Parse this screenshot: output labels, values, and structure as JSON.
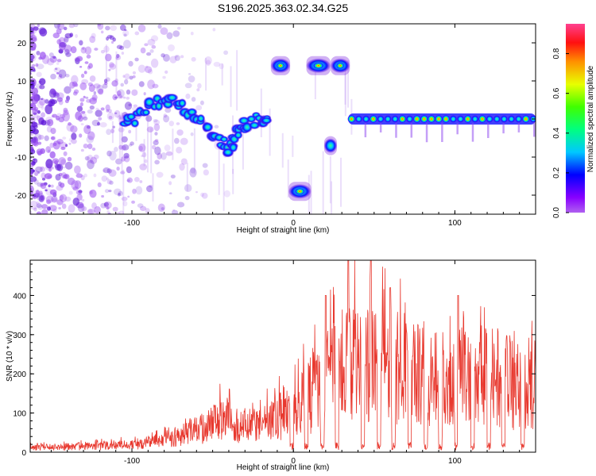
{
  "title": "S196.2025.363.02.34.G25",
  "chart_data": [
    {
      "type": "heatmap",
      "name": "spectrogram",
      "xlabel": "Height of straight line (km)",
      "ylabel": "Frequency (Hz)",
      "xlim": [
        -163,
        150
      ],
      "ylim": [
        -25,
        25
      ],
      "xticks": [
        -100,
        0,
        100
      ],
      "yticks": [
        -20,
        -10,
        0,
        10,
        20
      ],
      "colorbar": {
        "label": "Normalized spectral amplitude",
        "range": [
          0,
          0.95
        ],
        "ticks": [
          0.0,
          0.2,
          0.4,
          0.6,
          0.8
        ]
      },
      "features": [
        {
          "name": "noise-band",
          "x_from": -163,
          "x_to": -40,
          "f_from": -25,
          "f_to": 25
        },
        {
          "name": "descending-trace",
          "points": [
            [
              -105,
              -2
            ],
            [
              -95,
              1
            ],
            [
              -85,
              4
            ],
            [
              -75,
              5
            ],
            [
              -65,
              2
            ],
            [
              -55,
              -2
            ],
            [
              -45,
              -6
            ],
            [
              -40,
              -8
            ],
            [
              -35,
              -4
            ],
            [
              -30,
              -1
            ],
            [
              -20,
              0
            ],
            [
              -15,
              1
            ]
          ]
        },
        {
          "name": "burst-high-1",
          "x_from": -13,
          "x_to": -3,
          "freq": 14
        },
        {
          "name": "burst-low",
          "x_from": -2,
          "x_to": 10,
          "freq": -19
        },
        {
          "name": "burst-high-2",
          "x_from": 9,
          "x_to": 22,
          "freq": 14
        },
        {
          "name": "burst-mid",
          "x_from": 20,
          "x_to": 26,
          "freq": -7
        },
        {
          "name": "burst-high-3",
          "x_from": 24,
          "x_to": 34,
          "freq": 14
        },
        {
          "name": "steady-line",
          "x_from": 34,
          "x_to": 150,
          "freq": 0
        }
      ]
    },
    {
      "type": "line",
      "name": "snr",
      "xlabel": "Height of straight line (km)",
      "ylabel": "SNR (10 * v/v)",
      "xlim": [
        -163,
        150
      ],
      "ylim": [
        0,
        490
      ],
      "xticks": [
        -100,
        0,
        100
      ],
      "yticks": [
        0,
        100,
        200,
        300,
        400
      ],
      "color": "#e8392f",
      "envelope": [
        {
          "x": -163,
          "y": 15
        },
        {
          "x": -120,
          "y": 20
        },
        {
          "x": -100,
          "y": 25
        },
        {
          "x": -80,
          "y": 40
        },
        {
          "x": -60,
          "y": 70
        },
        {
          "x": -45,
          "y": 110
        },
        {
          "x": -35,
          "y": 90
        },
        {
          "x": -25,
          "y": 85
        },
        {
          "x": -15,
          "y": 100
        },
        {
          "x": -5,
          "y": 130
        },
        {
          "x": 5,
          "y": 160
        },
        {
          "x": 15,
          "y": 210
        },
        {
          "x": 25,
          "y": 260
        },
        {
          "x": 35,
          "y": 300
        },
        {
          "x": 45,
          "y": 310
        },
        {
          "x": 55,
          "y": 290
        },
        {
          "x": 65,
          "y": 280
        },
        {
          "x": 75,
          "y": 270
        },
        {
          "x": 85,
          "y": 230
        },
        {
          "x": 95,
          "y": 200
        },
        {
          "x": 105,
          "y": 260
        },
        {
          "x": 115,
          "y": 260
        },
        {
          "x": 125,
          "y": 240
        },
        {
          "x": 135,
          "y": 230
        },
        {
          "x": 145,
          "y": 200
        },
        {
          "x": 150,
          "y": 210
        }
      ],
      "dips": [
        -1,
        8,
        18,
        27,
        43,
        53,
        62,
        72,
        82,
        91,
        101,
        111,
        121,
        130,
        142
      ],
      "peaks": [
        {
          "x": 34,
          "y": 490
        },
        {
          "x": 48,
          "y": 490
        },
        {
          "x": 20,
          "y": 400
        },
        {
          "x": 60,
          "y": 420
        },
        {
          "x": 102,
          "y": 400
        }
      ]
    }
  ],
  "colors": {
    "axis": "#000000",
    "line": "#e8392f",
    "purple": "#7b1fe0"
  }
}
